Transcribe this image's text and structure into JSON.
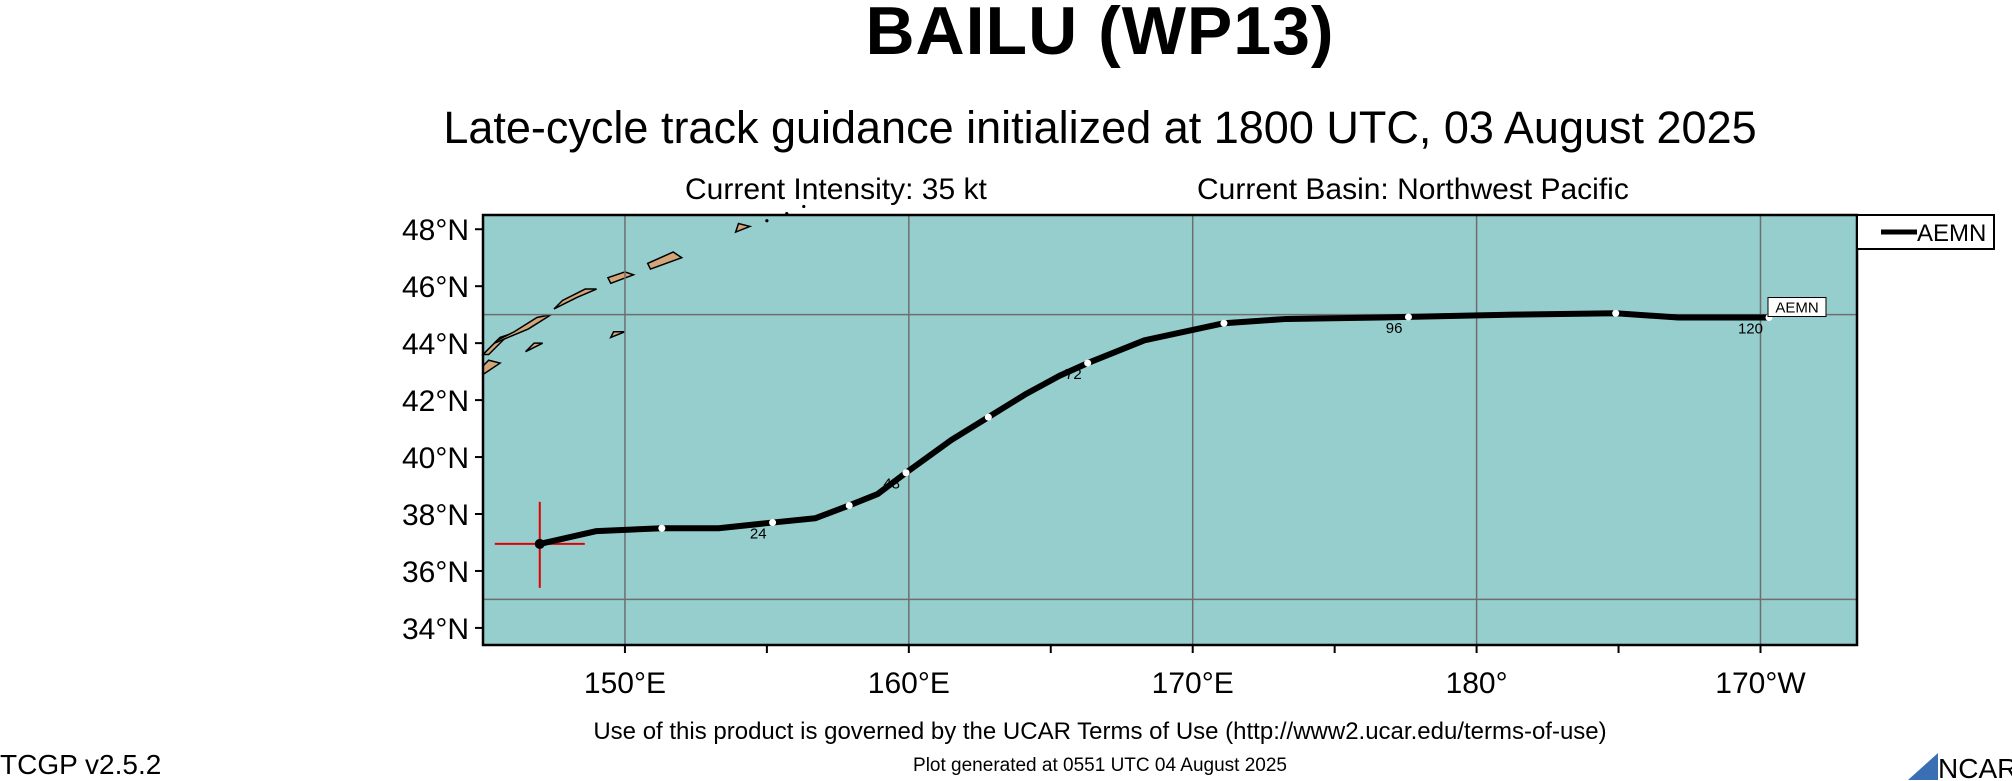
{
  "header": {
    "title": "BAILU (WP13)",
    "subtitle": "Late-cycle track guidance initialized at 1800 UTC, 03 August 2025",
    "intensity": "Current Intensity: 35 kt",
    "basin": "Current Basin: Northwest Pacific"
  },
  "map": {
    "ocean_color": "#96cdcd",
    "land_color": "#d2a679",
    "grid_color": "#6e6e6e",
    "y_ticks": [
      "48°N",
      "46°N",
      "44°N",
      "42°N",
      "40°N",
      "38°N",
      "36°N",
      "34°N"
    ],
    "x_ticks": [
      "150°E",
      "160°E",
      "170°E",
      "180°",
      "170°W"
    ],
    "current_position": {
      "lon": 147.0,
      "lat": 36.95,
      "marker_color": "#e00000"
    }
  },
  "legend": {
    "entries": [
      "AEMN"
    ]
  },
  "tracks": [
    {
      "name": "AEMN",
      "end_label": "AEMN",
      "points": [
        [
          147.0,
          36.95
        ],
        [
          149.0,
          37.4
        ],
        [
          151.3,
          37.5
        ],
        [
          153.3,
          37.5
        ],
        [
          155.2,
          37.7
        ],
        [
          156.7,
          37.85
        ],
        [
          157.9,
          38.3
        ],
        [
          158.9,
          38.7
        ],
        [
          159.9,
          39.45
        ],
        [
          161.5,
          40.6
        ],
        [
          162.8,
          41.4
        ],
        [
          164.1,
          42.2
        ],
        [
          165.3,
          42.85
        ],
        [
          166.3,
          43.3
        ],
        [
          168.3,
          44.1
        ],
        [
          171.1,
          44.7
        ],
        [
          173.3,
          44.85
        ],
        [
          176.6,
          44.9
        ],
        [
          181.3,
          45.0
        ],
        [
          184.9,
          45.05
        ],
        [
          187.1,
          44.9
        ],
        [
          190.3,
          44.9
        ]
      ],
      "time_marks": [
        {
          "hour": "",
          "lon": 151.3,
          "lat": 37.5
        },
        {
          "hour": "24",
          "lon": 155.2,
          "lat": 37.7
        },
        {
          "hour": "",
          "lon": 157.9,
          "lat": 38.3
        },
        {
          "hour": "48",
          "lon": 159.9,
          "lat": 39.45
        },
        {
          "hour": "",
          "lon": 162.8,
          "lat": 41.4
        },
        {
          "hour": "72",
          "lon": 166.3,
          "lat": 43.3
        },
        {
          "hour": "",
          "lon": 171.1,
          "lat": 44.7
        },
        {
          "hour": "96",
          "lon": 177.6,
          "lat": 44.92
        },
        {
          "hour": "",
          "lon": 184.9,
          "lat": 45.05
        },
        {
          "hour": "120",
          "lon": 190.3,
          "lat": 44.9
        }
      ]
    }
  ],
  "footer": {
    "terms": "Use of this product is governed by the UCAR Terms of Use (http://www2.ucar.edu/terms-of-use)",
    "generated": "Plot generated at 0551 UTC   04 August 2025",
    "version": "TCGP v2.5.2",
    "logo_text": "NCAR"
  }
}
